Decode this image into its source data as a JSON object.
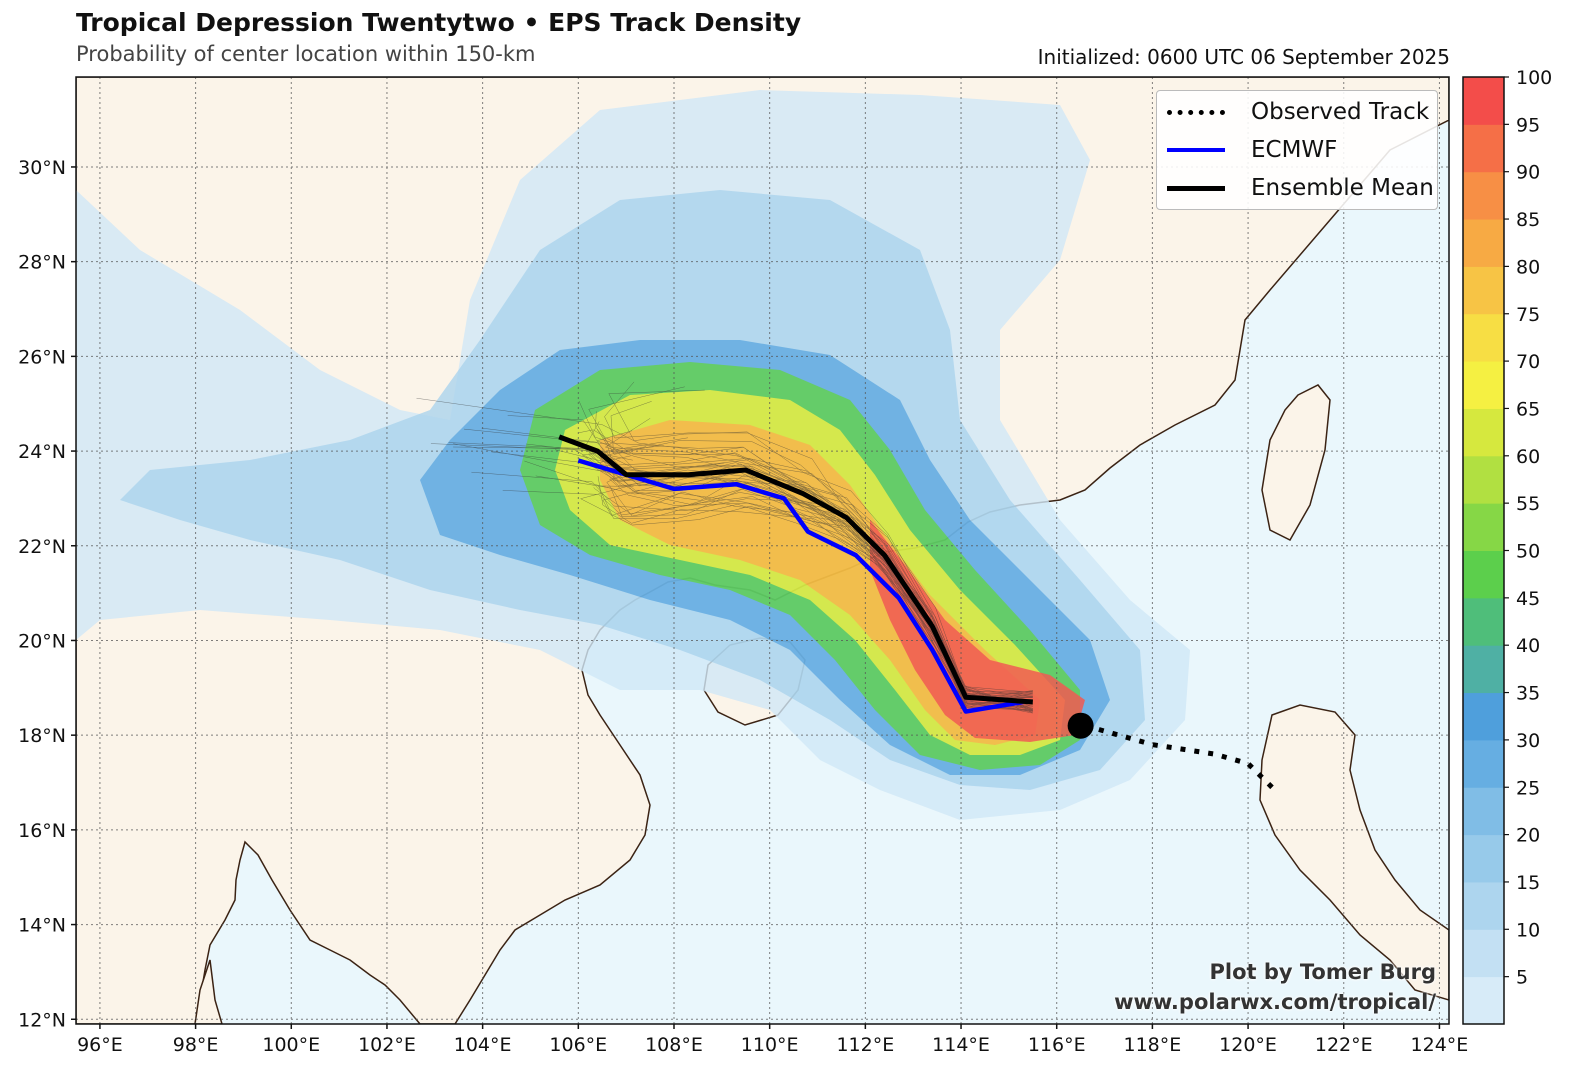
{
  "header": {
    "title": "Tropical Depression Twentytwo • EPS Track Density",
    "subtitle": "Probability of center location within 150-km",
    "initialized": "Initialized: 0600 UTC 06 September 2025"
  },
  "map": {
    "lon_range": [
      95.5,
      124.2
    ],
    "lat_range": [
      11.9,
      31.9
    ],
    "lon_ticks": [
      "96°E",
      "98°E",
      "100°E",
      "102°E",
      "104°E",
      "106°E",
      "108°E",
      "110°E",
      "112°E",
      "114°E",
      "116°E",
      "118°E",
      "120°E",
      "122°E",
      "124°E"
    ],
    "lat_ticks": [
      "12°N",
      "14°N",
      "16°N",
      "18°N",
      "20°N",
      "22°N",
      "24°N",
      "26°N",
      "28°N",
      "30°N"
    ],
    "lon_tick_values": [
      96,
      98,
      100,
      102,
      104,
      106,
      108,
      110,
      112,
      114,
      116,
      118,
      120,
      122,
      124
    ],
    "lat_tick_values": [
      12,
      14,
      16,
      18,
      20,
      22,
      24,
      26,
      28,
      30
    ],
    "ocean_color": "#eaf7fc",
    "land_color": "#fbf4e9",
    "coast_color": "#3b2314"
  },
  "tracks": {
    "observed": [
      [
        120.5,
        16.9
      ],
      [
        120.0,
        17.4
      ],
      [
        119.3,
        17.6
      ],
      [
        118.0,
        17.8
      ],
      [
        116.6,
        18.2
      ]
    ],
    "current_position": [
      116.5,
      18.2
    ],
    "ecmwf": [
      [
        106.0,
        23.8
      ],
      [
        107.0,
        23.5
      ],
      [
        108.0,
        23.2
      ],
      [
        109.3,
        23.3
      ],
      [
        110.3,
        23.0
      ],
      [
        110.8,
        22.3
      ],
      [
        111.8,
        21.8
      ],
      [
        112.7,
        20.9
      ],
      [
        113.4,
        19.8
      ],
      [
        114.1,
        18.5
      ],
      [
        115.3,
        18.7
      ]
    ],
    "ensemble_mean": [
      [
        105.6,
        24.3
      ],
      [
        106.4,
        24.0
      ],
      [
        107.0,
        23.5
      ],
      [
        108.3,
        23.5
      ],
      [
        109.5,
        23.6
      ],
      [
        110.7,
        23.1
      ],
      [
        111.6,
        22.6
      ],
      [
        112.4,
        21.8
      ],
      [
        113.4,
        20.3
      ],
      [
        114.1,
        18.8
      ],
      [
        115.5,
        18.7
      ]
    ]
  },
  "legend": {
    "observed": "Observed Track",
    "ecmwf": "ECMWF",
    "mean": "Ensemble Mean"
  },
  "colorbar": {
    "ticks": [
      "5",
      "10",
      "15",
      "20",
      "25",
      "30",
      "35",
      "40",
      "45",
      "50",
      "55",
      "60",
      "65",
      "70",
      "75",
      "80",
      "85",
      "90",
      "95",
      "100"
    ],
    "colors": [
      "#d7ebf8",
      "#c3e0f3",
      "#add5ee",
      "#97caea",
      "#80bde6",
      "#66aee2",
      "#4f9fdc",
      "#4fb0a4",
      "#4fbe7a",
      "#5ccf4c",
      "#86d746",
      "#b1e041",
      "#d6e83e",
      "#f5f042",
      "#f7de44",
      "#f7c445",
      "#f7aa44",
      "#f78f45",
      "#f56f47",
      "#f34d4a"
    ]
  },
  "credit": {
    "line1": "Plot by Tomer Burg",
    "line2": "www.polarwx.com/tropical/"
  }
}
